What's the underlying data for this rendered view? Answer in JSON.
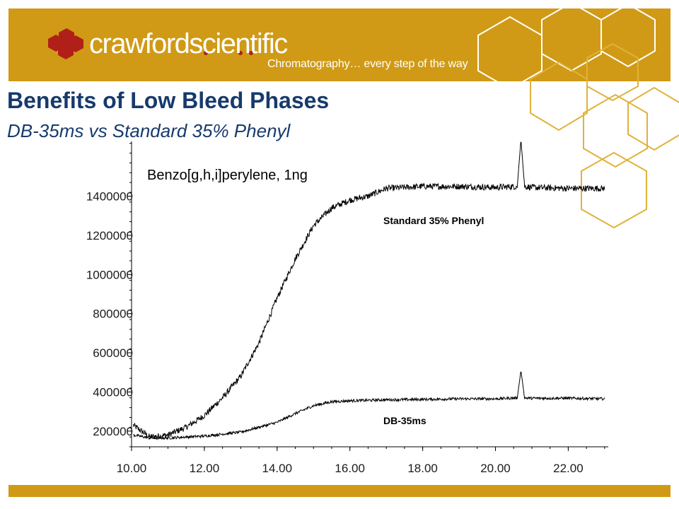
{
  "brand": {
    "name": "crawfordscientific",
    "tagline": "Chromatography… every step of the way",
    "color": "#d09a16",
    "logo_icon": "hexagon-cluster-icon"
  },
  "slide": {
    "title": "Benefits of Low Bleed Phases",
    "subtitle": "DB-35ms vs Standard 35% Phenyl",
    "title_color": "#173a6d"
  },
  "chart_data": {
    "type": "line",
    "annotation": "Benzo[g,h,i]perylene, 1ng",
    "xlim": [
      10.0,
      23.1
    ],
    "ylim": [
      120000,
      1680000
    ],
    "x_ticks": [
      "10.00",
      "12.00",
      "14.00",
      "16.00",
      "18.00",
      "20.00",
      "22.00"
    ],
    "y_ticks": [
      "200000",
      "400000",
      "600000",
      "800000",
      "1000000",
      "1200000",
      "1400000"
    ],
    "grid": false,
    "series": [
      {
        "name": "Standard 35% Phenyl",
        "x": [
          10.05,
          10.5,
          11.0,
          11.5,
          12.0,
          12.5,
          13.0,
          13.5,
          14.0,
          14.5,
          15.0,
          15.5,
          16.0,
          16.5,
          17.0,
          18.0,
          19.0,
          20.0,
          20.6,
          20.7,
          20.8,
          21.0,
          22.0,
          23.0
        ],
        "y": [
          230000,
          170000,
          180000,
          220000,
          280000,
          370000,
          480000,
          650000,
          880000,
          1080000,
          1250000,
          1340000,
          1380000,
          1400000,
          1440000,
          1450000,
          1450000,
          1445000,
          1450000,
          1690000,
          1450000,
          1445000,
          1440000,
          1440000
        ]
      },
      {
        "name": "DB-35ms",
        "x": [
          10.05,
          10.5,
          11.0,
          12.0,
          13.0,
          14.0,
          14.5,
          15.0,
          15.5,
          16.0,
          17.0,
          18.0,
          19.0,
          20.0,
          20.6,
          20.7,
          20.8,
          21.0,
          22.0,
          23.0
        ],
        "y": [
          180000,
          165000,
          165000,
          175000,
          195000,
          245000,
          290000,
          330000,
          350000,
          355000,
          360000,
          362000,
          365000,
          365000,
          370000,
          510000,
          370000,
          368000,
          368000,
          365000
        ]
      }
    ]
  }
}
